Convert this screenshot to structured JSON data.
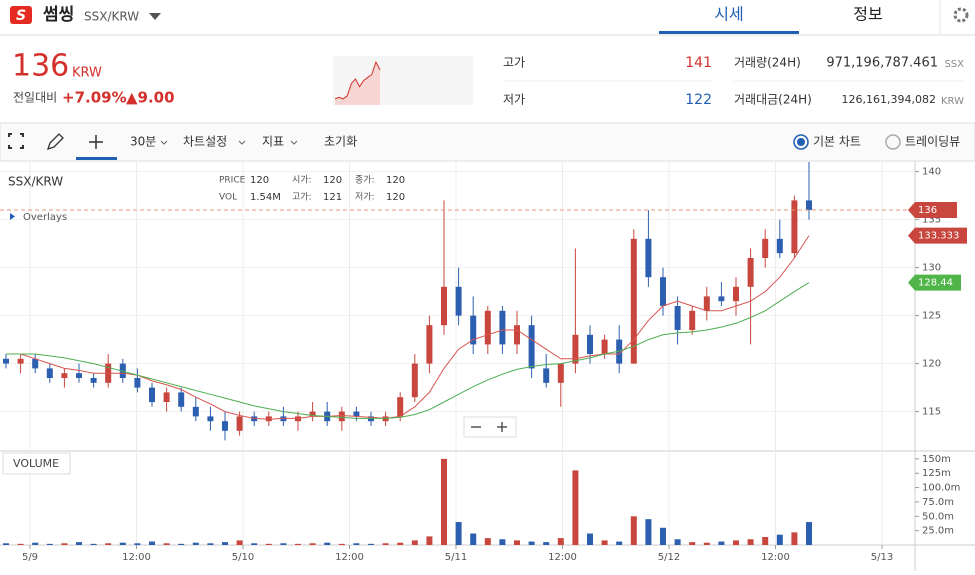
{
  "header": {
    "logo": "S",
    "name": "썸씽",
    "pair": "SSX/KRW",
    "tabs": [
      "시세",
      "정보"
    ]
  },
  "ticker": {
    "price": 136,
    "unit": "KRW",
    "change_label": "전일대비",
    "change_pct": "+7.09%",
    "change_abs": "▲9.00",
    "sparkline": {
      "values": [
        114,
        115,
        114,
        116,
        124,
        127,
        122,
        126,
        128,
        130,
        138,
        133
      ],
      "ylim": [
        110,
        142
      ]
    },
    "high_label": "고가",
    "high": 141,
    "low_label": "저가",
    "low": 122,
    "volume_label": "거래량(24H)",
    "volume": "971,196,787.461",
    "volume_unit": "SSX",
    "amount_label": "거래대금(24H)",
    "amount": "126,161,394,082",
    "amount_unit": "KRW"
  },
  "toolbar": {
    "interval": "30분",
    "items": [
      "차트설정",
      "지표",
      "초기화"
    ],
    "chart_types": [
      "기본 차트",
      "트레이딩뷰"
    ]
  },
  "chart_data": {
    "type": "candlestick",
    "title": "SSX/KRW",
    "overlays": "Overlays",
    "legend": [
      {
        "label": "PRICE",
        "value": "120"
      },
      {
        "label": "시가:",
        "value": "120"
      },
      {
        "label": "종가:",
        "value": "120"
      },
      {
        "label": "VOL",
        "value": "1.54M"
      },
      {
        "label": "고가:",
        "value": "121"
      },
      {
        "label": "저가:",
        "value": "120"
      }
    ],
    "up_color": "#c8463d",
    "down_color": "#2d5fb0",
    "open": [
      120.5,
      120,
      120.5,
      119.5,
      118.5,
      119,
      118.5,
      118,
      120,
      118.5,
      117.5,
      116,
      117,
      115.5,
      114.5,
      114,
      113,
      114.5,
      114,
      114.5,
      114,
      114.5,
      115,
      114,
      115,
      114.5,
      114,
      114.5,
      116.5,
      120,
      124,
      128,
      125,
      122,
      125.5,
      122,
      124,
      119.5,
      118,
      120,
      123,
      121,
      122.5,
      120,
      133,
      129,
      126,
      123.5,
      125.5,
      127,
      126.5,
      128,
      131,
      133,
      131.5,
      137
    ],
    "high": [
      121,
      121,
      121,
      120,
      119.5,
      120,
      119,
      121,
      120.5,
      119.5,
      118,
      117.5,
      117.5,
      116.5,
      115.5,
      115,
      115,
      115,
      115,
      115.5,
      115,
      116,
      116,
      115.5,
      115.5,
      115,
      115,
      117,
      121,
      125,
      137,
      130,
      127,
      126,
      126,
      125.5,
      125,
      121,
      120,
      132,
      124,
      123,
      124,
      134,
      136,
      130,
      127,
      126,
      128,
      128.5,
      129,
      132,
      134,
      135,
      137.5,
      141
    ],
    "low": [
      119.5,
      119,
      119,
      118,
      117.5,
      118,
      117.5,
      117.5,
      118,
      117,
      115.5,
      115,
      115,
      114,
      113,
      112,
      112.5,
      113.5,
      113.5,
      113.5,
      113,
      114,
      113.5,
      113,
      114,
      113.5,
      113.5,
      114,
      116,
      119,
      123,
      124,
      121,
      121,
      121,
      121,
      118.5,
      117.5,
      115.5,
      119,
      120,
      120.5,
      119,
      120,
      128,
      125,
      122,
      123,
      124.5,
      126,
      125,
      122,
      130,
      131,
      131,
      135
    ],
    "close": [
      120,
      120.5,
      119.5,
      118.5,
      119,
      118.5,
      118,
      120,
      118.5,
      117.5,
      116,
      117,
      115.5,
      114.5,
      114,
      113,
      114.5,
      114,
      114.5,
      114,
      114.5,
      115,
      114,
      115,
      114.5,
      114,
      114.5,
      116.5,
      120,
      124,
      128,
      125,
      122,
      125.5,
      122,
      124,
      119.5,
      118,
      120,
      123,
      121,
      122.5,
      120,
      133,
      129,
      126,
      123.5,
      125.5,
      127,
      126.5,
      128,
      131,
      133,
      131.5,
      137,
      136
    ],
    "series": [
      {
        "color": "#d9534f",
        "values": [
          121,
          121,
          120.5,
          120,
          119.5,
          119.3,
          119,
          119,
          119,
          118.8,
          118.2,
          117.8,
          117.3,
          116.5,
          115.8,
          115,
          114.6,
          114.3,
          114.2,
          114.3,
          114.3,
          114.5,
          114.5,
          114.6,
          114.5,
          114.4,
          114.3,
          114.5,
          115.5,
          117,
          119.5,
          121.5,
          122.5,
          123,
          123.5,
          123.5,
          122.5,
          121.5,
          120.5,
          120.5,
          120.8,
          121,
          121,
          122.5,
          124.5,
          126,
          126.5,
          126,
          125.5,
          125.5,
          126,
          126.5,
          127.5,
          129,
          131,
          133.333
        ]
      },
      {
        "color": "#4caf50",
        "values": [
          121,
          121,
          121,
          120.8,
          120.6,
          120.3,
          120,
          119.6,
          119.2,
          118.8,
          118.4,
          118,
          117.6,
          117.2,
          116.8,
          116.4,
          116,
          115.6,
          115.3,
          115,
          114.8,
          114.6,
          114.5,
          114.4,
          114.3,
          114.3,
          114.3,
          114.4,
          114.7,
          115.2,
          116,
          116.8,
          117.6,
          118.3,
          118.9,
          119.4,
          119.7,
          119.9,
          120,
          120.3,
          120.6,
          121,
          121.3,
          121.8,
          122.5,
          123,
          123.2,
          123.3,
          123.5,
          123.8,
          124.2,
          124.8,
          125.5,
          126.5,
          127.5,
          128.44
        ]
      }
    ],
    "ylim": [
      111,
      141
    ],
    "yticks": [
      140,
      135,
      130,
      125,
      120,
      115
    ],
    "volume_title": "VOLUME",
    "volume": [
      3,
      2,
      4,
      2,
      3,
      5,
      2,
      3,
      4,
      3,
      6,
      3,
      2,
      4,
      3,
      5,
      8,
      3,
      2,
      3,
      2,
      3,
      4,
      2,
      3,
      2,
      3,
      4,
      8,
      15,
      150,
      40,
      20,
      12,
      10,
      8,
      6,
      5,
      12,
      130,
      20,
      8,
      6,
      50,
      45,
      30,
      10,
      5,
      4,
      6,
      8,
      10,
      14,
      18,
      22,
      40
    ],
    "vlim": [
      0,
      162
    ],
    "vticks": [
      {
        "value": 150,
        "label": "150m"
      },
      {
        "value": 125,
        "label": "125m"
      },
      {
        "value": 100,
        "label": "100.0m"
      },
      {
        "value": 75,
        "label": "75.0m"
      },
      {
        "value": 50,
        "label": "50.0m"
      },
      {
        "value": 25,
        "label": "25.0m"
      }
    ],
    "x_labels": [
      "5/9",
      "12:00",
      "5/10",
      "12:00",
      "5/11",
      "12:00",
      "5/12",
      "12:00",
      "5/13"
    ]
  }
}
